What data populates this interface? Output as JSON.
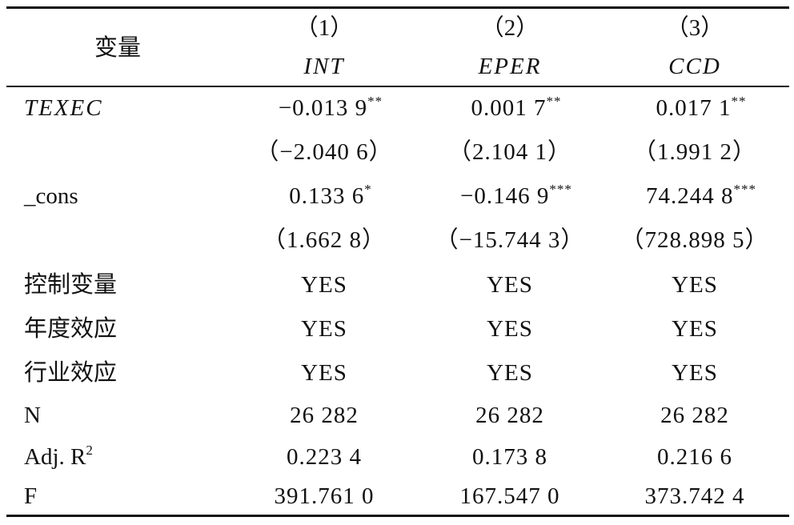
{
  "table": {
    "header": {
      "label": "变量",
      "columns": [
        {
          "number": "（1）",
          "name": "INT"
        },
        {
          "number": "（2）",
          "name": "EPER"
        },
        {
          "number": "（3）",
          "name": "CCD"
        }
      ]
    },
    "rows": [
      {
        "label": "TEXEC",
        "italic": true,
        "cells": [
          {
            "value": "−0.013 9",
            "stars": "**"
          },
          {
            "value": "0.001 7",
            "stars": "**"
          },
          {
            "value": "0.017 1",
            "stars": "**"
          }
        ]
      },
      {
        "cells": [
          {
            "value": "（−2.040 6）"
          },
          {
            "value": "（2.104 1）"
          },
          {
            "value": "（1.991 2）"
          }
        ]
      },
      {
        "label": "_cons",
        "cells": [
          {
            "value": "0.133 6",
            "stars": "*"
          },
          {
            "value": "−0.146 9",
            "stars": "***"
          },
          {
            "value": "74.244 8",
            "stars": "***"
          }
        ]
      },
      {
        "cells": [
          {
            "value": "（1.662 8）"
          },
          {
            "value": "（−15.744 3）"
          },
          {
            "value": "（728.898 5）"
          }
        ]
      },
      {
        "label": "控制变量",
        "cells": [
          {
            "value": "YES"
          },
          {
            "value": "YES"
          },
          {
            "value": "YES"
          }
        ]
      },
      {
        "label": "年度效应",
        "cells": [
          {
            "value": "YES"
          },
          {
            "value": "YES"
          },
          {
            "value": "YES"
          }
        ]
      },
      {
        "label": "行业效应",
        "cells": [
          {
            "value": "YES"
          },
          {
            "value": "YES"
          },
          {
            "value": "YES"
          }
        ]
      },
      {
        "label": "N",
        "cells": [
          {
            "value": "26 282"
          },
          {
            "value": "26 282"
          },
          {
            "value": "26 282"
          }
        ]
      },
      {
        "label": "Adj. R",
        "label_sup": "2",
        "cells": [
          {
            "value": "0.223 4"
          },
          {
            "value": "0.173 8"
          },
          {
            "value": "0.216 6"
          }
        ]
      },
      {
        "label": "F",
        "cells": [
          {
            "value": "391.761 0"
          },
          {
            "value": "167.547 0"
          },
          {
            "value": "373.742 4"
          }
        ]
      }
    ]
  }
}
